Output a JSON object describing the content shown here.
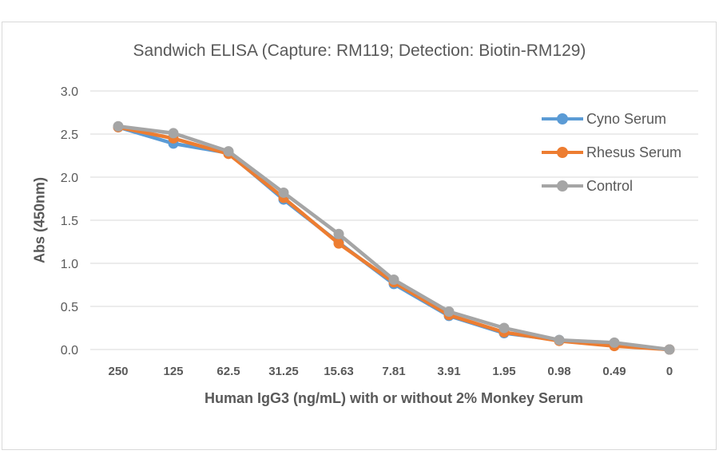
{
  "chart_data": {
    "type": "line",
    "title": "Sandwich ELISA (Capture:  RM119; Detection: Biotin-RM129)",
    "xlabel": "Human IgG3 (ng/mL) with or without 2% Monkey Serum",
    "ylabel": "Abs (450nm)",
    "categories": [
      "250",
      "125",
      "62.5",
      "31.25",
      "15.63",
      "7.81",
      "3.91",
      "1.95",
      "0.98",
      "0.49",
      "0"
    ],
    "yticks": [
      "0.0",
      "0.5",
      "1.0",
      "1.5",
      "2.0",
      "2.5",
      "3.0"
    ],
    "ylim": [
      0,
      3.0
    ],
    "grid": true,
    "legend_position": "upper right",
    "series": [
      {
        "name": "Cyno Serum",
        "color": "#5b9bd5",
        "values": [
          2.58,
          2.39,
          2.28,
          1.74,
          1.24,
          0.76,
          0.39,
          0.19,
          0.11,
          0.05,
          0.0
        ]
      },
      {
        "name": "Rhesus Serum",
        "color": "#ed7d31",
        "values": [
          2.58,
          2.45,
          2.27,
          1.76,
          1.23,
          0.78,
          0.4,
          0.2,
          0.1,
          0.04,
          0.0
        ]
      },
      {
        "name": "Control",
        "color": "#a5a5a5",
        "values": [
          2.59,
          2.51,
          2.3,
          1.82,
          1.34,
          0.81,
          0.44,
          0.25,
          0.11,
          0.08,
          0.0
        ]
      }
    ]
  }
}
